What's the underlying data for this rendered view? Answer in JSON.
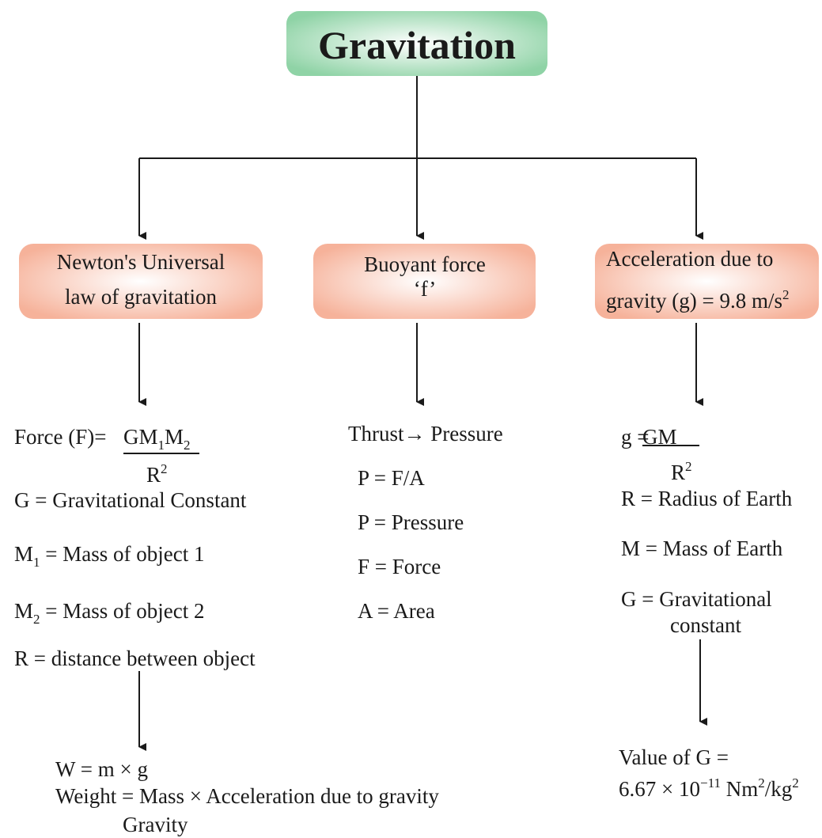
{
  "title": "Gravitation",
  "branches": [
    {
      "heading": [
        [
          {
            "text": "Newton's Universal"
          }
        ],
        [
          {
            "text": "law of gravitation"
          }
        ]
      ],
      "details": [
        [
          {
            "text": "Force (F)= "
          }
        ],
        [
          {
            "text": "GM"
          },
          {
            "text": "1",
            "script": "sub"
          },
          {
            "text": "M"
          },
          {
            "text": "2",
            "script": "sub"
          }
        ],
        [
          {
            "text": "R"
          },
          {
            "text": "2",
            "script": "sup"
          }
        ],
        [
          {
            "text": "G = Gravitational Constant"
          }
        ],
        [
          {
            "text": "M"
          },
          {
            "text": "1",
            "script": "sub"
          },
          {
            "text": " = Mass of object 1"
          }
        ],
        [
          {
            "text": "M"
          },
          {
            "text": "2",
            "script": "sub"
          },
          {
            "text": " = Mass of object 2"
          }
        ],
        [
          {
            "text": "R = distance between object"
          }
        ]
      ],
      "result": [
        [
          {
            "text": "W = m × g"
          }
        ],
        [
          {
            "text": "Weight = Mass × Acceleration due to gravity"
          }
        ],
        [
          {
            "text": "Gravity"
          }
        ]
      ]
    },
    {
      "heading": [
        [
          {
            "text": "Buoyant force"
          }
        ],
        [
          {
            "text": "‘f’"
          }
        ]
      ],
      "details": [
        [
          {
            "text": "Thrust→ Pressure"
          }
        ],
        [
          {
            "text": "P = F/A"
          }
        ],
        [
          {
            "text": "P = Pressure"
          }
        ],
        [
          {
            "text": "F = Force"
          }
        ],
        [
          {
            "text": "A = Area"
          }
        ]
      ]
    },
    {
      "heading": [
        [
          {
            "text": "Acceleration due to"
          }
        ],
        [
          {
            "text": "gravity (g) = 9.8 m/s"
          },
          {
            "text": "2",
            "script": "sup"
          }
        ]
      ],
      "details": [
        [
          {
            "text": "g = "
          }
        ],
        [
          {
            "text": "GM"
          }
        ],
        [
          {
            "text": "R"
          },
          {
            "text": "2",
            "script": "sup"
          }
        ],
        [
          {
            "text": "R = Radius of Earth"
          }
        ],
        [
          {
            "text": "M = Mass of Earth"
          }
        ],
        [
          {
            "text": "G = Gravitational"
          }
        ],
        [
          {
            "text": "constant"
          }
        ]
      ],
      "result": [
        [
          {
            "text": "Value of G ="
          }
        ],
        [
          {
            "text": "6.67 × 10"
          },
          {
            "text": "−11",
            "script": "sup"
          },
          {
            "text": " Nm"
          },
          {
            "text": "2",
            "script": "sup"
          },
          {
            "text": "/kg"
          },
          {
            "text": "2",
            "script": "sup"
          }
        ]
      ]
    }
  ]
}
